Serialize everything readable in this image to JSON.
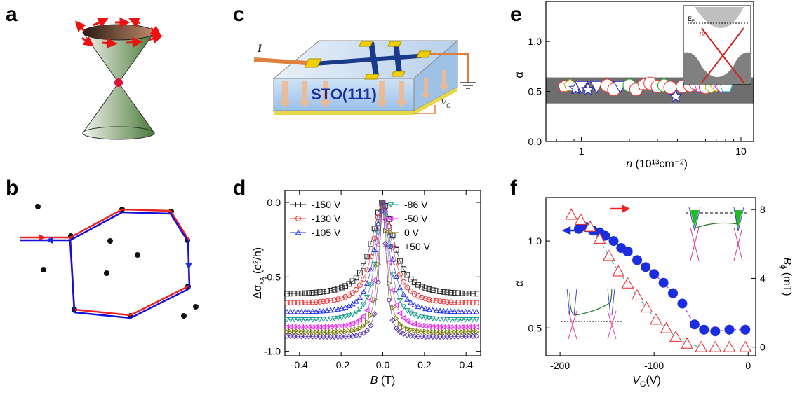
{
  "panel_labels": {
    "a": "a",
    "b": "b",
    "c": "c",
    "d": "d",
    "e": "e",
    "f": "f"
  },
  "panel_c": {
    "current_label": "I",
    "substrate_label": "STO(111)",
    "gate_label": "V",
    "gate_sub": "G"
  },
  "colors": {
    "cone_green": "#4a7a3a",
    "cone_top": "#7a4a30",
    "spin_red": "#ee1111",
    "path_red": "#ee2222",
    "path_blue": "#1111dd",
    "hall_bar": "#1a3a8a",
    "contact": "#f0d000",
    "substrate": "#a8c8ec"
  },
  "chart_data": [
    {
      "id": "d",
      "type": "scatter",
      "xlabel": "B",
      "xunit": "(T)",
      "ylabel": "Δσ",
      "ylabel_sub": "xx",
      "yunit": "(e²/h)",
      "xlim": [
        -0.47,
        0.47
      ],
      "ylim": [
        -1.03,
        0.08
      ],
      "xticks": [
        "-0.4",
        "-0.2",
        "0.0",
        "0.2",
        "0.4"
      ],
      "xtick_values": [
        -0.4,
        -0.2,
        0.0,
        0.2,
        0.4
      ],
      "yticks": [
        "-1.0",
        "-0.5",
        "0.0"
      ],
      "ytick_values": [
        -1.0,
        -0.5,
        0.0
      ],
      "series": [
        {
          "name": "-150 V",
          "color": "#222222",
          "marker": "square",
          "amp": -0.64,
          "w": 0.065
        },
        {
          "name": "-130 V",
          "color": "#ee3333",
          "marker": "circle",
          "amp": -0.7,
          "w": 0.055
        },
        {
          "name": "-105 V",
          "color": "#2233ee",
          "marker": "triangle-up",
          "amp": -0.76,
          "w": 0.047
        },
        {
          "name": "-86 V",
          "color": "#119988",
          "marker": "triangle-down",
          "amp": -0.81,
          "w": 0.039
        },
        {
          "name": "-50 V",
          "color": "#ee22ee",
          "marker": "triangle-left",
          "amp": -0.86,
          "w": 0.032
        },
        {
          "name": "0 V",
          "color": "#777700",
          "marker": "triangle-right",
          "amp": -0.89,
          "w": 0.024
        },
        {
          "name": "+50 V",
          "color": "#5533aa",
          "marker": "diamond",
          "amp": -0.92,
          "w": 0.019
        }
      ]
    },
    {
      "id": "e",
      "type": "scatter",
      "xlabel": "n",
      "xunit": "(10¹³cm⁻²)",
      "ylabel": "α",
      "xscale": "log",
      "xlim": [
        0.6,
        12
      ],
      "ylim": [
        0.0,
        1.4
      ],
      "xticks": [
        "1",
        "10"
      ],
      "xtick_values": [
        1,
        10
      ],
      "yticks": [
        "0.0",
        "0.5",
        "1.0"
      ],
      "ytick_values": [
        0.0,
        0.5,
        1.0
      ],
      "band": [
        0.38,
        0.64
      ],
      "points": [
        {
          "x": 0.78,
          "y": 0.55,
          "m": "pentagon",
          "c": "#ee3333"
        },
        {
          "x": 0.85,
          "y": 0.56,
          "m": "pentagon",
          "c": "#bbaa00"
        },
        {
          "x": 0.92,
          "y": 0.53,
          "m": "star",
          "c": "#2222cc"
        },
        {
          "x": 1.0,
          "y": 0.55,
          "m": "triangle-down",
          "c": "#2222cc"
        },
        {
          "x": 1.1,
          "y": 0.52,
          "m": "star",
          "c": "#2222cc"
        },
        {
          "x": 1.25,
          "y": 0.55,
          "m": "triangle-down",
          "c": "#2222cc"
        },
        {
          "x": 1.45,
          "y": 0.56,
          "m": "circle",
          "c": "#ee3333"
        },
        {
          "x": 1.6,
          "y": 0.52,
          "m": "circle",
          "c": "#ee3333"
        },
        {
          "x": 1.75,
          "y": 0.55,
          "m": "triangle-down",
          "c": "#2222cc"
        },
        {
          "x": 2.0,
          "y": 0.56,
          "m": "circle",
          "c": "#22aa22"
        },
        {
          "x": 2.2,
          "y": 0.52,
          "m": "circle",
          "c": "#ee3333"
        },
        {
          "x": 2.45,
          "y": 0.57,
          "m": "pentagon",
          "c": "#ee3333"
        },
        {
          "x": 2.7,
          "y": 0.58,
          "m": "circle",
          "c": "#ee3333"
        },
        {
          "x": 3.0,
          "y": 0.55,
          "m": "circle",
          "c": "#ee3333"
        },
        {
          "x": 3.3,
          "y": 0.56,
          "m": "circle",
          "c": "#22aa22"
        },
        {
          "x": 3.6,
          "y": 0.54,
          "m": "circle",
          "c": "#ee3333"
        },
        {
          "x": 3.9,
          "y": 0.45,
          "m": "star",
          "c": "#2222cc"
        },
        {
          "x": 4.3,
          "y": 0.55,
          "m": "circle",
          "c": "#ee3333"
        },
        {
          "x": 4.8,
          "y": 0.56,
          "m": "circle",
          "c": "#ee3333"
        },
        {
          "x": 5.2,
          "y": 0.58,
          "m": "circle",
          "c": "#ee3333"
        },
        {
          "x": 5.6,
          "y": 0.55,
          "m": "pentagon",
          "c": "#ee22ee"
        },
        {
          "x": 6.0,
          "y": 0.54,
          "m": "circle",
          "c": "#ee3333"
        },
        {
          "x": 6.5,
          "y": 0.55,
          "m": "hexagon",
          "c": "#bbbb00"
        },
        {
          "x": 7.0,
          "y": 0.56,
          "m": "diamond",
          "c": "#bbbb00"
        },
        {
          "x": 7.5,
          "y": 0.55,
          "m": "diamond",
          "c": "#ee22ee"
        },
        {
          "x": 8.1,
          "y": 0.55,
          "m": "pentagon",
          "c": "#33ccee"
        }
      ],
      "inset": {
        "ef_label": "E",
        "ef_sub": "F",
        "ss_label": "SS"
      }
    },
    {
      "id": "f",
      "type": "scatter",
      "xlabel": "V",
      "xlabel_sub": "G",
      "xunit": "(V)",
      "ylabel": "α",
      "y2label": "B",
      "y2label_sub": "ϕ",
      "y2unit": "(mT)",
      "xlim": [
        -215,
        8
      ],
      "ylim": [
        0.34,
        1.25
      ],
      "y2lim": [
        -0.5,
        8.7
      ],
      "xticks": [
        "-200",
        "-100",
        "0"
      ],
      "xtick_values": [
        -200,
        -100,
        0
      ],
      "yticks": [
        "0.5",
        "1.0"
      ],
      "ytick_values": [
        0.5,
        1.0
      ],
      "y2ticks": [
        "0",
        "4",
        "8"
      ],
      "y2tick_values": [
        0,
        4,
        8
      ],
      "series": [
        {
          "name": "α",
          "axis": "left",
          "marker": "circle-filled",
          "color": "#1a2ee0",
          "line_color": "#cc33cc",
          "x": [
            -180,
            -172,
            -165,
            -158,
            -152,
            -143,
            -135,
            -128,
            -118,
            -109,
            -100,
            -90,
            -80,
            -70,
            -57,
            -47,
            -35,
            -20,
            -3
          ],
          "y": [
            1.07,
            1.08,
            1.06,
            1.05,
            1.03,
            1.0,
            0.96,
            0.94,
            0.89,
            0.85,
            0.81,
            0.76,
            0.7,
            0.64,
            0.52,
            0.49,
            0.48,
            0.49,
            0.49
          ]
        },
        {
          "name": "Bϕ",
          "axis": "right",
          "marker": "triangle-open",
          "color": "#ee2222",
          "line_color": "#33bbcc",
          "x": [
            -188,
            -178,
            -168,
            -158,
            -148,
            -138,
            -128,
            -118,
            -108,
            -98,
            -87,
            -77,
            -65,
            -50,
            -35,
            -20,
            -3
          ],
          "y": [
            7.7,
            7.4,
            7.0,
            6.3,
            5.3,
            4.4,
            3.7,
            3.0,
            2.3,
            1.6,
            1.1,
            0.6,
            0.2,
            0.0,
            0.0,
            0.0,
            0.0
          ]
        }
      ]
    }
  ]
}
